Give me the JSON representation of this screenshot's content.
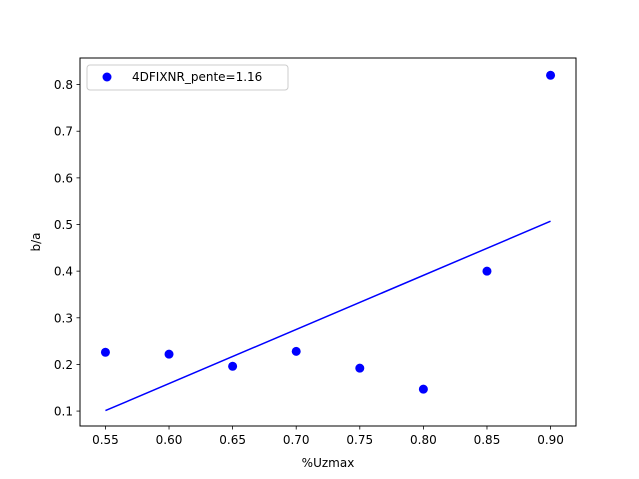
{
  "chart_data": {
    "type": "scatter",
    "xlabel": "%Uzmax",
    "ylabel": "b/a",
    "xlim": [
      0.53,
      0.92
    ],
    "ylim": [
      0.068,
      0.857
    ],
    "xticks": [
      0.55,
      0.6,
      0.65,
      0.7,
      0.75,
      0.8,
      0.85,
      0.9
    ],
    "xtick_labels": [
      "0.55",
      "0.60",
      "0.65",
      "0.70",
      "0.75",
      "0.80",
      "0.85",
      "0.90"
    ],
    "yticks": [
      0.1,
      0.2,
      0.3,
      0.4,
      0.5,
      0.6,
      0.7,
      0.8
    ],
    "ytick_labels": [
      "0.1",
      "0.2",
      "0.3",
      "0.4",
      "0.5",
      "0.6",
      "0.7",
      "0.8"
    ],
    "grid": false,
    "legend_position": "upper-left",
    "series": [
      {
        "name": "4DFIXNR_pente=1.16",
        "kind": "scatter",
        "color": "#0000ff",
        "x": [
          0.55,
          0.6,
          0.65,
          0.7,
          0.75,
          0.8,
          0.85,
          0.9
        ],
        "y": [
          0.226,
          0.222,
          0.196,
          0.228,
          0.192,
          0.147,
          0.4,
          0.82
        ]
      },
      {
        "kind": "line",
        "color": "#0000ff",
        "x": [
          0.55,
          0.9
        ],
        "y": [
          0.101,
          0.507
        ]
      }
    ]
  }
}
